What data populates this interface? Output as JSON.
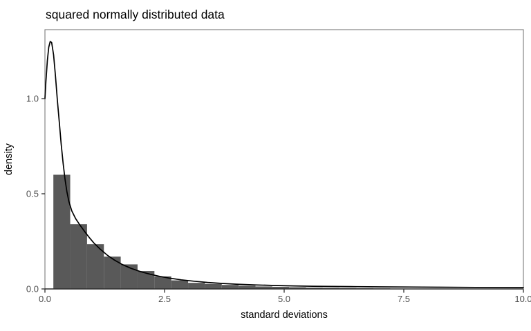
{
  "chart_data": {
    "type": "histogram",
    "title": "squared normally distributed data",
    "xlabel": "standard deviations",
    "ylabel": "density",
    "xlim": [
      0,
      10
    ],
    "ylim": [
      0,
      1.3623
    ],
    "grid": false,
    "legend": false,
    "x_ticks": {
      "values": [
        0,
        2.5,
        5,
        7.5,
        10
      ],
      "labels": [
        "0.0",
        "2.5",
        "5.0",
        "7.5",
        "10.0"
      ]
    },
    "y_ticks": {
      "values": [
        0,
        0.5,
        1.0
      ],
      "labels": [
        "0.0",
        "0.5",
        "1.0"
      ]
    },
    "histogram": {
      "fill_color": "#595959",
      "bin_start": 0.176,
      "bin_width": 0.352,
      "densities": [
        0.6,
        0.34,
        0.235,
        0.17,
        0.129,
        0.094,
        0.066,
        0.045,
        0.032,
        0.026,
        0.021,
        0.017,
        0.013,
        0.011,
        0.009,
        0.007,
        0.006,
        0.005,
        0.004,
        0.003
      ]
    },
    "density_curve": {
      "color": "#000000",
      "points": [
        [
          0.0,
          1.0
        ],
        [
          0.02,
          1.09
        ],
        [
          0.05,
          1.2
        ],
        [
          0.08,
          1.27
        ],
        [
          0.11,
          1.3
        ],
        [
          0.14,
          1.295
        ],
        [
          0.18,
          1.23
        ],
        [
          0.22,
          1.12
        ],
        [
          0.26,
          0.99
        ],
        [
          0.3,
          0.875
        ],
        [
          0.34,
          0.76
        ],
        [
          0.38,
          0.66
        ],
        [
          0.42,
          0.575
        ],
        [
          0.46,
          0.51
        ],
        [
          0.5,
          0.46
        ],
        [
          0.56,
          0.41
        ],
        [
          0.64,
          0.37
        ],
        [
          0.72,
          0.34
        ],
        [
          0.82,
          0.305
        ],
        [
          0.92,
          0.272
        ],
        [
          1.02,
          0.242
        ],
        [
          1.15,
          0.21
        ],
        [
          1.3,
          0.178
        ],
        [
          1.45,
          0.152
        ],
        [
          1.62,
          0.128
        ],
        [
          1.8,
          0.108
        ],
        [
          2.0,
          0.091
        ],
        [
          2.2,
          0.077
        ],
        [
          2.4,
          0.066
        ],
        [
          2.6,
          0.057
        ],
        [
          2.85,
          0.048
        ],
        [
          3.1,
          0.041
        ],
        [
          3.4,
          0.034
        ],
        [
          3.7,
          0.029
        ],
        [
          4.0,
          0.025
        ],
        [
          4.4,
          0.021
        ],
        [
          4.8,
          0.018
        ],
        [
          5.2,
          0.016
        ],
        [
          5.6,
          0.014
        ],
        [
          6.0,
          0.013
        ],
        [
          6.5,
          0.012
        ],
        [
          7.0,
          0.011
        ],
        [
          7.6,
          0.01
        ],
        [
          8.2,
          0.009
        ],
        [
          9.0,
          0.008
        ],
        [
          10.0,
          0.007
        ]
      ]
    },
    "colors": {
      "panel_border": "#7a7a7a",
      "axis_line": "#2e2e2e",
      "tick_label": "#4d4d4d",
      "title_text": "#000000",
      "axis_title_text": "#000000",
      "panel_background": "#ffffff"
    }
  }
}
